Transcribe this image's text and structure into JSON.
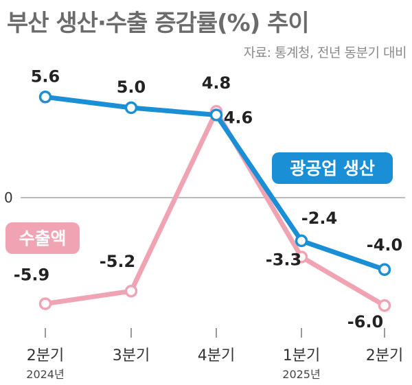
{
  "title": "부산 생산·수출 증감률(%) 추이",
  "source": "자료: 통계청, 전년 동분기 대비",
  "colors": {
    "production": "#1a8fd6",
    "exports": "#f0a3b3",
    "text": "#222222",
    "axis": "#777777"
  },
  "chart_data": {
    "type": "line",
    "title": "부산 생산·수출 증감률(%) 추이",
    "categories": [
      "2분기|2024년",
      "3분기",
      "4분기",
      "1분기|2025년",
      "2분기"
    ],
    "x_labels": [
      {
        "line1": "2분기",
        "line2": "2024년"
      },
      {
        "line1": "3분기",
        "line2": ""
      },
      {
        "line1": "4분기",
        "line2": ""
      },
      {
        "line1": "1분기",
        "line2": "2025년"
      },
      {
        "line1": "2분기",
        "line2": ""
      }
    ],
    "zero_label": "0",
    "ylim": [
      -8,
      8
    ],
    "grid": false,
    "series": [
      {
        "name": "광공업 생산",
        "values": [
          5.6,
          5.0,
          4.6,
          -2.4,
          -4.0
        ],
        "labels": [
          "5.6",
          "5.0",
          "4.6",
          "-2.4",
          "-4.0"
        ]
      },
      {
        "name": "수출액",
        "values": [
          -5.9,
          -5.2,
          4.8,
          -3.3,
          -6.0
        ],
        "labels": [
          "-5.9",
          "-5.2",
          "4.8",
          "-3.3",
          "-6.0"
        ]
      }
    ]
  }
}
